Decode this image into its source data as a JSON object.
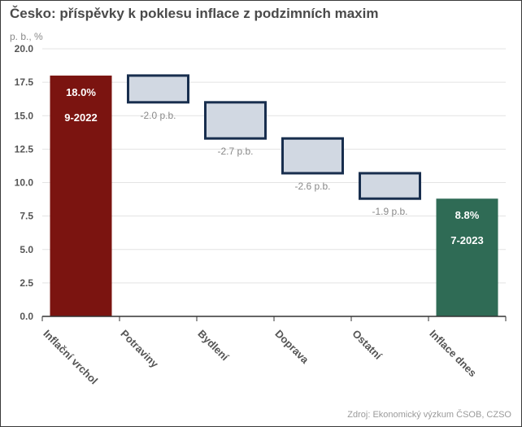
{
  "chart_data": {
    "type": "bar",
    "subtype": "waterfall",
    "title": "Česko: příspěvky k poklesu inflace z podzimních maxim",
    "unit_label": "p. b., %",
    "source": "Zdroj: Ekonomický výzkum ČSOB, CZSO",
    "ylim": [
      0,
      20
    ],
    "yticks": [
      "0.0",
      "2.5",
      "5.0",
      "7.5",
      "10.0",
      "12.5",
      "15.0",
      "17.5",
      "20.0"
    ],
    "grid": true,
    "categories": [
      "Inflační vrchol",
      "Potraviny",
      "Bydlení",
      "Doprava",
      "Ostatní",
      "Inflace dnes"
    ],
    "bars": [
      {
        "kind": "total",
        "start": 0,
        "end": 18.0,
        "value_label": "18.0%",
        "date_label": "9-2022",
        "color": "#7b1410"
      },
      {
        "kind": "step",
        "start": 18.0,
        "end": 16.0,
        "value_label": "-2.0 p.b."
      },
      {
        "kind": "step",
        "start": 16.0,
        "end": 13.3,
        "value_label": "-2.7 p.b."
      },
      {
        "kind": "step",
        "start": 13.3,
        "end": 10.7,
        "value_label": "-2.6 p.b."
      },
      {
        "kind": "step",
        "start": 10.7,
        "end": 8.8,
        "value_label": "-1.9 p.b."
      },
      {
        "kind": "total",
        "start": 0,
        "end": 8.8,
        "value_label": "8.8%",
        "date_label": "7-2023",
        "color": "#2f6b55"
      }
    ],
    "step_fill": "#d1d8e2",
    "step_stroke": "#182e4e"
  }
}
